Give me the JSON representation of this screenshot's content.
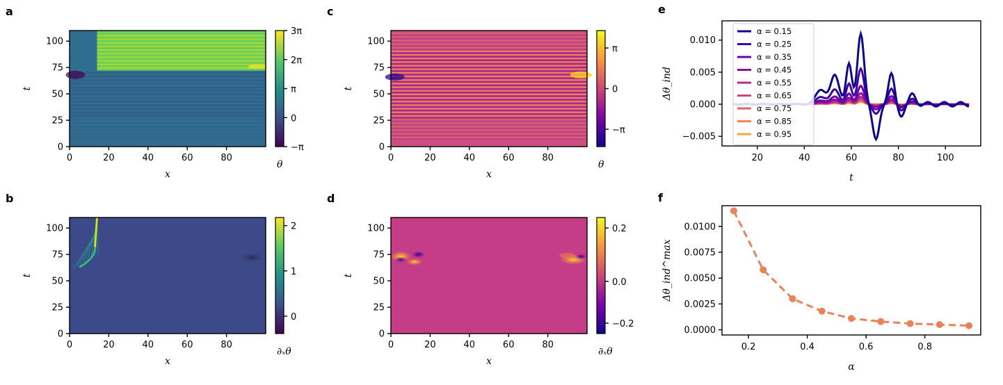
{
  "panels": {
    "a": {
      "label": "a",
      "xlabel": "x",
      "ylabel": "t",
      "cbar_label": "θ",
      "xticks": [
        "0",
        "20",
        "40",
        "60",
        "80"
      ],
      "yticks": [
        "0",
        "25",
        "50",
        "75",
        "100"
      ],
      "cbar_ticks": [
        "3π",
        "2π",
        "π",
        "0",
        "−π"
      ],
      "cmap": "viridis"
    },
    "b": {
      "label": "b",
      "xlabel": "x",
      "ylabel": "t",
      "cbar_label": "∂ₓθ",
      "xticks": [
        "0",
        "20",
        "40",
        "60",
        "80"
      ],
      "yticks": [
        "0",
        "25",
        "50",
        "75",
        "100"
      ],
      "cbar_ticks": [
        "2",
        "1",
        "0"
      ],
      "cmap": "viridis"
    },
    "c": {
      "label": "c",
      "xlabel": "x",
      "ylabel": "t",
      "cbar_label": "θ",
      "xticks": [
        "0",
        "20",
        "40",
        "60",
        "80"
      ],
      "yticks": [
        "0",
        "25",
        "50",
        "75",
        "100"
      ],
      "cbar_ticks": [
        "π",
        "0",
        "−π"
      ],
      "cmap": "plasma"
    },
    "d": {
      "label": "d",
      "xlabel": "x",
      "ylabel": "t",
      "cbar_label": "∂ₓθ",
      "xticks": [
        "0",
        "20",
        "40",
        "60",
        "80"
      ],
      "yticks": [
        "0",
        "25",
        "50",
        "75",
        "100"
      ],
      "cbar_ticks": [
        "0.2",
        "0.0",
        "−0.2"
      ],
      "cmap": "plasma"
    },
    "e": {
      "label": "e",
      "xlabel": "t",
      "ylabel": "Δθ_ind",
      "xticks": [
        "20",
        "40",
        "60",
        "80",
        "100"
      ],
      "yticks": [
        "0.010",
        "0.005",
        "0.000",
        "−0.005"
      ]
    },
    "f": {
      "label": "f",
      "xlabel": "α",
      "ylabel": "Δθ_ind^max",
      "xticks": [
        "0.2",
        "0.4",
        "0.6",
        "0.8"
      ],
      "yticks": [
        "0.0100",
        "0.0075",
        "0.0050",
        "0.0025",
        "0.0000"
      ]
    }
  },
  "chart_data": [
    {
      "type": "heatmap",
      "panel": "a",
      "title": "",
      "xlabel": "x",
      "ylabel": "t",
      "xlim": [
        0,
        100
      ],
      "ylim": [
        0,
        110
      ],
      "colorbar": "θ",
      "crange": [
        "−π",
        "3π"
      ]
    },
    {
      "type": "heatmap",
      "panel": "b",
      "title": "",
      "xlabel": "x",
      "ylabel": "t",
      "xlim": [
        0,
        100
      ],
      "ylim": [
        0,
        110
      ],
      "colorbar": "∂ₓθ",
      "crange": [
        -0.5,
        2.3
      ]
    },
    {
      "type": "heatmap",
      "panel": "c",
      "title": "",
      "xlabel": "x",
      "ylabel": "t",
      "xlim": [
        0,
        100
      ],
      "ylim": [
        0,
        110
      ],
      "colorbar": "θ",
      "crange": [
        "−π",
        "π"
      ]
    },
    {
      "type": "heatmap",
      "panel": "d",
      "title": "",
      "xlabel": "x",
      "ylabel": "t",
      "xlim": [
        0,
        100
      ],
      "ylim": [
        0,
        110
      ],
      "colorbar": "∂ₓθ",
      "crange": [
        -0.25,
        0.3
      ]
    },
    {
      "type": "line",
      "panel": "e",
      "xlabel": "t",
      "ylabel": "Δθ_ind",
      "xlim": [
        5,
        115
      ],
      "ylim": [
        -0.0065,
        0.013
      ],
      "legend": "top-left",
      "series": [
        {
          "name": "α = 0.15",
          "color": "#0d0887",
          "peak": 0.0115,
          "trough": -0.0055
        },
        {
          "name": "α = 0.25",
          "color": "#41049d",
          "peak": 0.0058,
          "trough": -0.0015
        },
        {
          "name": "α = 0.35",
          "color": "#6a00a8",
          "peak": 0.003,
          "trough": -0.0008
        },
        {
          "name": "α = 0.45",
          "color": "#8f0da4",
          "peak": 0.0018,
          "trough": -0.0004
        },
        {
          "name": "α = 0.55",
          "color": "#b12a90",
          "peak": 0.0012,
          "trough": -0.0003
        },
        {
          "name": "α = 0.65",
          "color": "#cc4778",
          "peak": 0.0009,
          "trough": -0.0002
        },
        {
          "name": "α = 0.75",
          "color": "#e16462",
          "peak": 0.0007,
          "trough": -0.0001
        },
        {
          "name": "α = 0.85",
          "color": "#f2844b",
          "peak": 0.0005,
          "trough": -0.0001
        },
        {
          "name": "α = 0.95",
          "color": "#fca636",
          "peak": 0.0004,
          "trough": 0.0
        }
      ]
    },
    {
      "type": "line",
      "panel": "f",
      "xlabel": "α",
      "ylabel": "Δθ_ind^max",
      "xlim": [
        0.11,
        0.99
      ],
      "ylim": [
        -0.0005,
        0.012
      ],
      "color": "#e8825a",
      "x": [
        0.15,
        0.25,
        0.35,
        0.45,
        0.55,
        0.65,
        0.75,
        0.85,
        0.95
      ],
      "y": [
        0.0115,
        0.0058,
        0.003,
        0.0018,
        0.0011,
        0.0008,
        0.0006,
        0.0005,
        0.0004
      ]
    }
  ]
}
